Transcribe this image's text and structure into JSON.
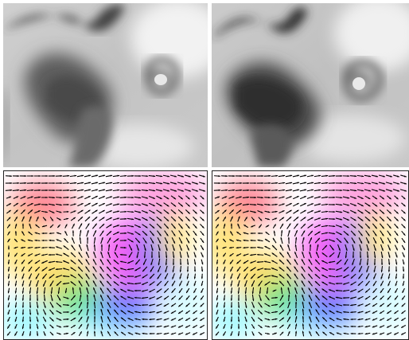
{
  "figure": {
    "panels": [
      {
        "name": "grayscale-frame-1",
        "kind": "grayscale-image"
      },
      {
        "name": "grayscale-frame-2",
        "kind": "grayscale-image"
      },
      {
        "name": "flow-field-1",
        "kind": "optical-flow-overlay"
      },
      {
        "name": "flow-field-2",
        "kind": "optical-flow-overlay"
      }
    ],
    "colors": {
      "photo_light": "#f0f0f0",
      "photo_mid": "#b8b8b8",
      "photo_dark": "#3a3a3a",
      "arrow": "#000000",
      "flow_magenta": "#ff4cf0",
      "flow_blue": "#5a63ff",
      "flow_green": "#59e07d",
      "flow_yellow": "#ffe67a",
      "flow_red": "#ff6b7a",
      "flow_cyan": "#8df3ff"
    }
  }
}
